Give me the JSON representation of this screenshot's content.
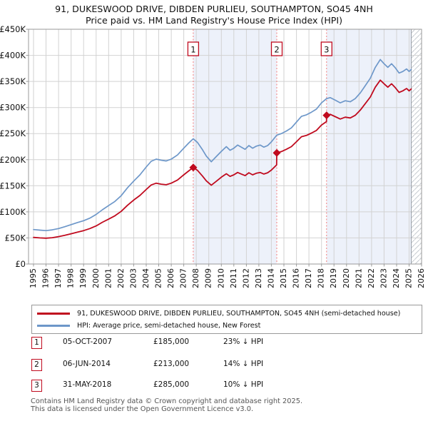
{
  "chart_data": {
    "type": "line",
    "title": "91, DUKESWOOD DRIVE, DIBDEN PURLIEU, SOUTHAMPTON, SO45 4NH",
    "subtitle": "Price paid vs. HM Land Registry's House Price Index (HPI)",
    "xlim": [
      1994.6,
      2026.0
    ],
    "ylim": [
      0,
      450000
    ],
    "grid": true,
    "legend_position": "below",
    "x_ticks": [
      1995,
      1996,
      1997,
      1998,
      1999,
      2000,
      2001,
      2002,
      2003,
      2004,
      2005,
      2006,
      2007,
      2008,
      2009,
      2010,
      2011,
      2012,
      2013,
      2014,
      2015,
      2016,
      2017,
      2018,
      2019,
      2020,
      2021,
      2022,
      2023,
      2024,
      2025,
      2026
    ],
    "y_ticks": [
      [
        0,
        "£0"
      ],
      [
        50000,
        "£50K"
      ],
      [
        100000,
        "£100K"
      ],
      [
        150000,
        "£150K"
      ],
      [
        200000,
        "£200K"
      ],
      [
        250000,
        "£250K"
      ],
      [
        300000,
        "£300K"
      ],
      [
        350000,
        "£350K"
      ],
      [
        400000,
        "£400K"
      ],
      [
        450000,
        "£450K"
      ]
    ],
    "colors": {
      "price_red": "#c00a1e",
      "hpi_blue": "#6d97c9",
      "band": "#edf1fa",
      "sale_line": "#f37c7c",
      "grid": "#d2d2d2",
      "border": "#999999",
      "hatch": "#c6cad1",
      "end_line": "#9aa0a8"
    },
    "series": [
      {
        "id": "price-paid-line",
        "name": "91, DUKESWOOD DRIVE, DIBDEN PURLIEU, SOUTHAMPTON, SO45 4NH (semi-detached house)",
        "color": "#c00a1e",
        "width": 1.8,
        "points": [
          [
            1995.0,
            51000
          ],
          [
            1995.5,
            50000
          ],
          [
            1996.0,
            49500
          ],
          [
            1996.5,
            50500
          ],
          [
            1997.0,
            52500
          ],
          [
            1997.5,
            55000
          ],
          [
            1998.0,
            58000
          ],
          [
            1998.5,
            61000
          ],
          [
            1999.0,
            64000
          ],
          [
            1999.5,
            68000
          ],
          [
            2000.0,
            73000
          ],
          [
            2000.5,
            80000
          ],
          [
            2001.0,
            86000
          ],
          [
            2001.5,
            92500
          ],
          [
            2002.0,
            101000
          ],
          [
            2002.5,
            112500
          ],
          [
            2003.0,
            122500
          ],
          [
            2003.5,
            131500
          ],
          [
            2004.0,
            143000
          ],
          [
            2004.4,
            151500
          ],
          [
            2004.8,
            155000
          ],
          [
            2005.2,
            153000
          ],
          [
            2005.6,
            152000
          ],
          [
            2006.0,
            155000
          ],
          [
            2006.5,
            161000
          ],
          [
            2007.0,
            171000
          ],
          [
            2007.4,
            178500
          ],
          [
            2007.76,
            185000
          ],
          [
            2008.1,
            179500
          ],
          [
            2008.5,
            168500
          ],
          [
            2008.8,
            159500
          ],
          [
            2009.2,
            151000
          ],
          [
            2009.6,
            158500
          ],
          [
            2010.0,
            166500
          ],
          [
            2010.4,
            173000
          ],
          [
            2010.7,
            168000
          ],
          [
            2011.0,
            171000
          ],
          [
            2011.3,
            175500
          ],
          [
            2011.6,
            172500
          ],
          [
            2011.9,
            169500
          ],
          [
            2012.2,
            175000
          ],
          [
            2012.5,
            171000
          ],
          [
            2012.8,
            174000
          ],
          [
            2013.1,
            175500
          ],
          [
            2013.4,
            172500
          ],
          [
            2013.7,
            175000
          ],
          [
            2014.0,
            180000
          ],
          [
            2014.42,
            190000
          ],
          [
            2014.43,
            213000
          ],
          [
            2014.8,
            215500
          ],
          [
            2015.2,
            220000
          ],
          [
            2015.6,
            225000
          ],
          [
            2016.0,
            234500
          ],
          [
            2016.4,
            244000
          ],
          [
            2016.8,
            246500
          ],
          [
            2017.2,
            251000
          ],
          [
            2017.6,
            256000
          ],
          [
            2018.0,
            266500
          ],
          [
            2018.4,
            273000
          ],
          [
            2018.41,
            285000
          ],
          [
            2018.7,
            287000
          ],
          [
            2019.1,
            282500
          ],
          [
            2019.5,
            278000
          ],
          [
            2019.9,
            281500
          ],
          [
            2020.3,
            280000
          ],
          [
            2020.7,
            285000
          ],
          [
            2021.1,
            295000
          ],
          [
            2021.5,
            307500
          ],
          [
            2021.9,
            320000
          ],
          [
            2022.3,
            339000
          ],
          [
            2022.7,
            352500
          ],
          [
            2023.0,
            345500
          ],
          [
            2023.3,
            339000
          ],
          [
            2023.6,
            345500
          ],
          [
            2023.9,
            338000
          ],
          [
            2024.2,
            329000
          ],
          [
            2024.5,
            332000
          ],
          [
            2024.8,
            336500
          ],
          [
            2025.0,
            332000
          ],
          [
            2025.17,
            335500
          ]
        ]
      },
      {
        "id": "hpi-line",
        "name": "HPI: Average price, semi-detached house, New Forest",
        "color": "#6d97c9",
        "width": 1.7,
        "points": [
          [
            1995.0,
            66000
          ],
          [
            1995.5,
            65000
          ],
          [
            1996.0,
            64000
          ],
          [
            1996.5,
            65500
          ],
          [
            1997.0,
            68000
          ],
          [
            1997.5,
            71500
          ],
          [
            1998.0,
            75500
          ],
          [
            1998.5,
            79500
          ],
          [
            1999.0,
            83000
          ],
          [
            1999.5,
            88000
          ],
          [
            2000.0,
            95000
          ],
          [
            2000.5,
            104000
          ],
          [
            2001.0,
            112000
          ],
          [
            2001.5,
            120000
          ],
          [
            2002.0,
            131000
          ],
          [
            2002.5,
            146000
          ],
          [
            2003.0,
            159000
          ],
          [
            2003.5,
            171000
          ],
          [
            2004.0,
            186000
          ],
          [
            2004.4,
            197000
          ],
          [
            2004.8,
            201000
          ],
          [
            2005.2,
            199000
          ],
          [
            2005.6,
            197500
          ],
          [
            2006.0,
            201000
          ],
          [
            2006.5,
            209000
          ],
          [
            2007.0,
            222000
          ],
          [
            2007.4,
            232000
          ],
          [
            2007.76,
            240000
          ],
          [
            2008.1,
            233000
          ],
          [
            2008.5,
            219000
          ],
          [
            2008.8,
            207000
          ],
          [
            2009.2,
            196000
          ],
          [
            2009.6,
            206000
          ],
          [
            2010.0,
            216000
          ],
          [
            2010.4,
            225000
          ],
          [
            2010.7,
            218000
          ],
          [
            2011.0,
            222000
          ],
          [
            2011.3,
            228000
          ],
          [
            2011.6,
            224000
          ],
          [
            2011.9,
            220000
          ],
          [
            2012.2,
            227000
          ],
          [
            2012.5,
            222000
          ],
          [
            2012.8,
            226000
          ],
          [
            2013.1,
            228000
          ],
          [
            2013.4,
            224000
          ],
          [
            2013.7,
            227000
          ],
          [
            2014.0,
            234000
          ],
          [
            2014.43,
            247000
          ],
          [
            2014.8,
            250000
          ],
          [
            2015.2,
            255000
          ],
          [
            2015.6,
            261000
          ],
          [
            2016.0,
            272000
          ],
          [
            2016.4,
            283000
          ],
          [
            2016.8,
            286000
          ],
          [
            2017.2,
            291000
          ],
          [
            2017.6,
            297000
          ],
          [
            2018.0,
            309000
          ],
          [
            2018.41,
            317000
          ],
          [
            2018.7,
            319000
          ],
          [
            2019.1,
            314000
          ],
          [
            2019.5,
            309000
          ],
          [
            2019.9,
            313000
          ],
          [
            2020.3,
            311000
          ],
          [
            2020.7,
            317000
          ],
          [
            2021.1,
            328000
          ],
          [
            2021.5,
            342000
          ],
          [
            2021.9,
            356000
          ],
          [
            2022.3,
            377000
          ],
          [
            2022.7,
            392000
          ],
          [
            2023.0,
            384000
          ],
          [
            2023.3,
            377000
          ],
          [
            2023.6,
            384000
          ],
          [
            2023.9,
            376000
          ],
          [
            2024.2,
            366000
          ],
          [
            2024.5,
            369000
          ],
          [
            2024.8,
            374000
          ],
          [
            2025.0,
            369000
          ],
          [
            2025.17,
            373000
          ]
        ]
      }
    ],
    "sales": [
      {
        "n": "1",
        "date": "05-OCT-2007",
        "year": 2007.76,
        "price": 185000,
        "price_label": "£185,000",
        "pct_vs_hpi": "23% ↓ HPI"
      },
      {
        "n": "2",
        "date": "06-JUN-2014",
        "year": 2014.43,
        "price": 213000,
        "price_label": "£213,000",
        "pct_vs_hpi": "14% ↓ HPI"
      },
      {
        "n": "3",
        "date": "31-MAY-2018",
        "year": 2018.41,
        "price": 285000,
        "price_label": "£285,000",
        "pct_vs_hpi": "10% ↓ HPI"
      }
    ],
    "bands": [
      [
        2007.76,
        2014.43
      ],
      [
        2018.41,
        2025.17
      ]
    ],
    "hatch_from": 2025.17
  },
  "footer": {
    "line1": "Contains HM Land Registry data © Crown copyright and database right 2025.",
    "line2": "This data is licensed under the Open Government Licence v3.0."
  }
}
